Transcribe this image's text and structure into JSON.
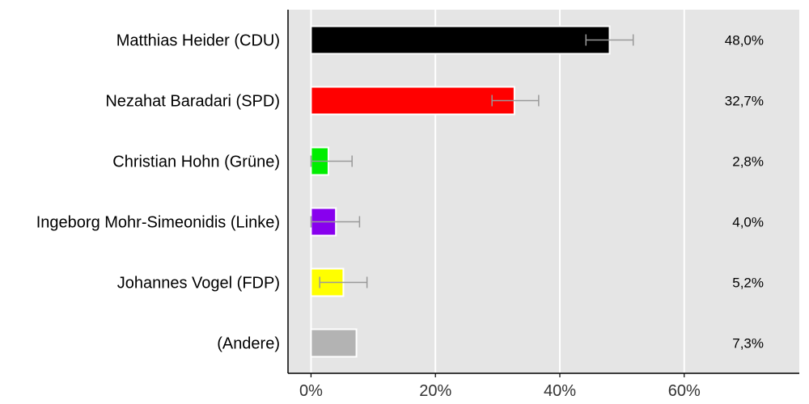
{
  "chart_data": {
    "type": "bar",
    "orientation": "horizontal",
    "categories": [
      "Matthias Heider (CDU)",
      "Nezahat Baradari (SPD)",
      "Christian Hohn (Grüne)",
      "Ingeborg Mohr-Simeonidis (Linke)",
      "Johannes Vogel (FDP)",
      "(Andere)"
    ],
    "values": [
      48.0,
      32.7,
      2.8,
      4.0,
      5.2,
      7.3
    ],
    "value_labels": [
      "48,0%",
      "32,7%",
      "2,8%",
      "4,0%",
      "5,2%",
      "7,3%"
    ],
    "error_bars": [
      {
        "low": 44.2,
        "high": 51.8
      },
      {
        "low": 29.1,
        "high": 36.6
      },
      {
        "low": 0.0,
        "high": 6.6
      },
      {
        "low": 0.0,
        "high": 7.8
      },
      {
        "low": 1.4,
        "high": 9.0
      },
      null
    ],
    "colors": [
      "#000000",
      "#ff0000",
      "#00ee00",
      "#8800ee",
      "#ffff00",
      "#b3b3b3"
    ],
    "x_ticks": [
      0,
      20,
      40,
      60
    ],
    "x_tick_labels": [
      "0%",
      "20%",
      "40%",
      "60%"
    ],
    "xlim": [
      -3.7,
      78.5
    ],
    "grid": true,
    "background": "#e5e5e5",
    "grid_color": "#ffffff",
    "error_bar_color": "#999999"
  }
}
